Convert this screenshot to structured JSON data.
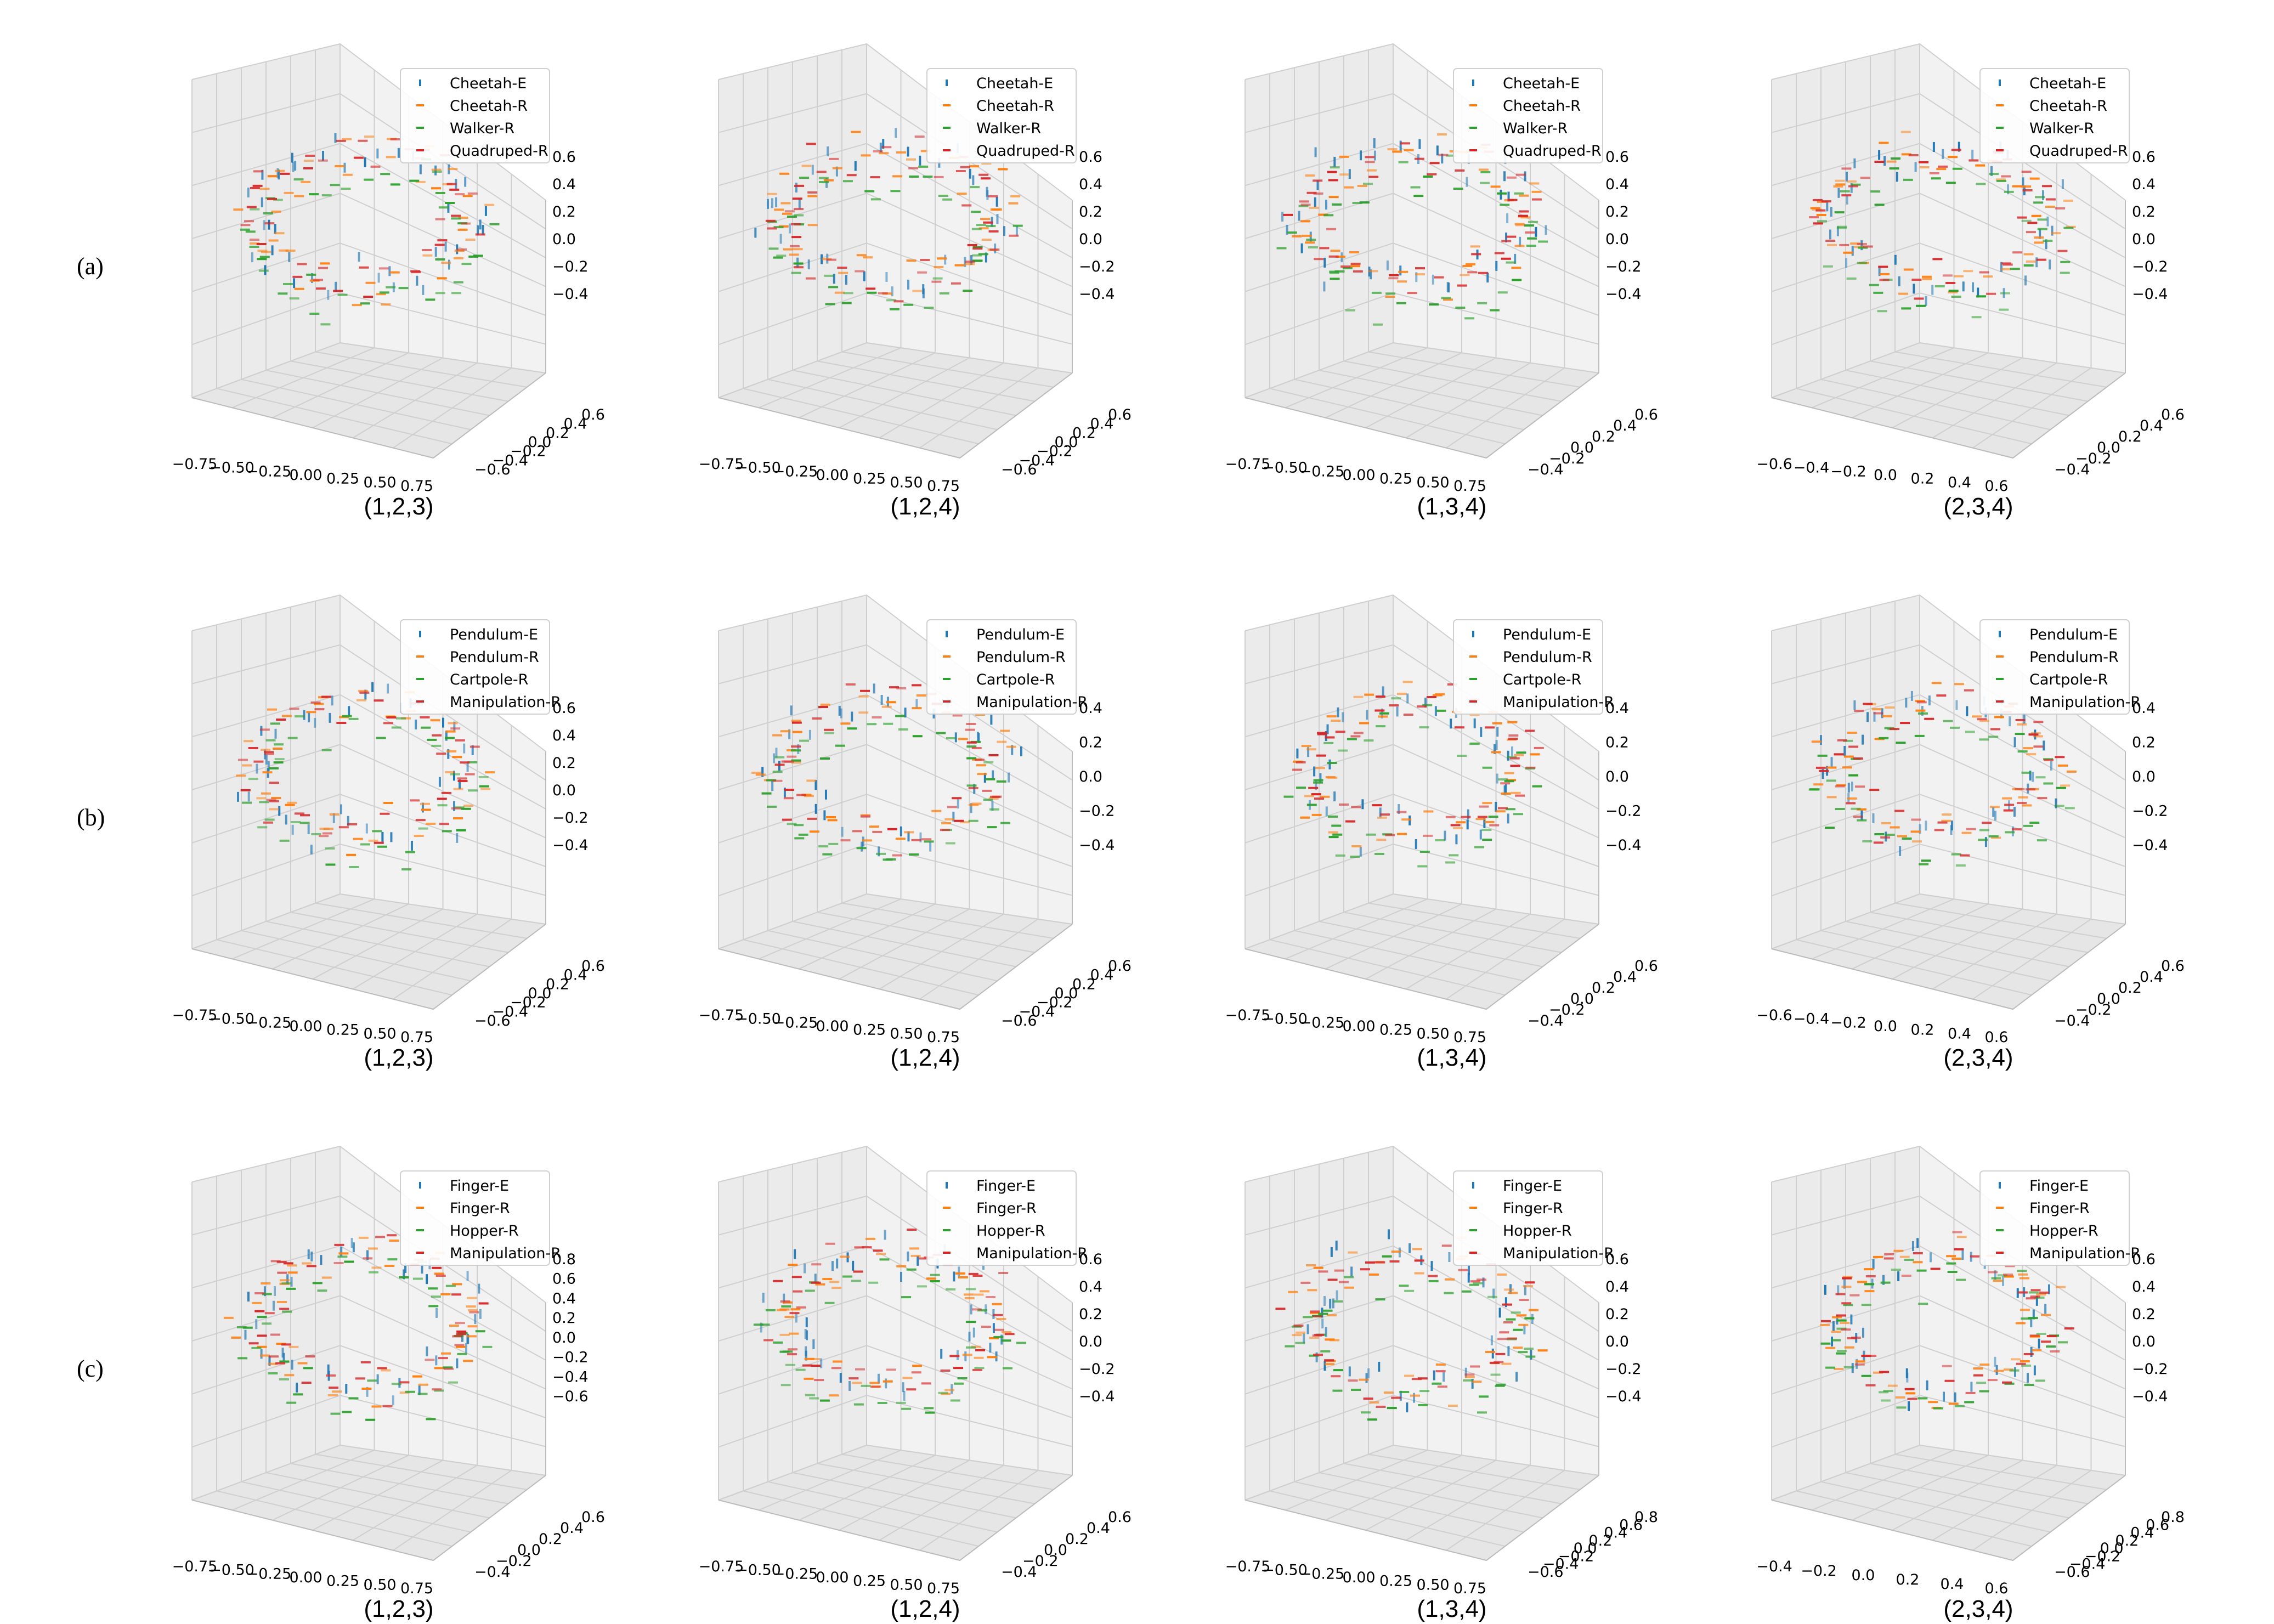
{
  "figure": {
    "row_labels": [
      "(a)",
      "(b)",
      "(c)"
    ]
  },
  "colors": {
    "blue": "#1f77b4",
    "orange": "#ff7f0e",
    "green": "#2ca02c",
    "red": "#d62728",
    "pane_wall": "#ebebeb",
    "pane_floor": "#f2f2f2",
    "grid": "#cfcfcf"
  },
  "chart_data": [
    {
      "type": "scatter",
      "row": 0,
      "col": 0,
      "caption": "(1,2,3)",
      "legend": [
        "Cheetah-E",
        "Cheetah-R",
        "Walker-R",
        "Quadruped-R"
      ],
      "x_ticks": [
        "−0.75",
        "−0.50",
        "−0.25",
        "0.00",
        "0.25",
        "0.50",
        "0.75"
      ],
      "y_ticks": [
        "−0.6",
        "−0.4",
        "−0.2",
        "0.0",
        "0.2",
        "0.4",
        "0.6"
      ],
      "z_ticks": [
        "−0.4",
        "−0.2",
        "0.0",
        "0.2",
        "0.4",
        "0.6"
      ]
    },
    {
      "type": "scatter",
      "row": 0,
      "col": 1,
      "caption": "(1,2,4)",
      "legend": [
        "Cheetah-E",
        "Cheetah-R",
        "Walker-R",
        "Quadruped-R"
      ],
      "x_ticks": [
        "−0.75",
        "−0.50",
        "−0.25",
        "0.00",
        "0.25",
        "0.50",
        "0.75"
      ],
      "y_ticks": [
        "−0.6",
        "−0.4",
        "−0.2",
        "0.0",
        "0.2",
        "0.4",
        "0.6"
      ],
      "z_ticks": [
        "−0.4",
        "−0.2",
        "0.0",
        "0.2",
        "0.4",
        "0.6"
      ]
    },
    {
      "type": "scatter",
      "row": 0,
      "col": 2,
      "caption": "(1,3,4)",
      "legend": [
        "Cheetah-E",
        "Cheetah-R",
        "Walker-R",
        "Quadruped-R"
      ],
      "x_ticks": [
        "−0.75",
        "−0.50",
        "−0.25",
        "0.00",
        "0.25",
        "0.50",
        "0.75"
      ],
      "y_ticks": [
        "−0.4",
        "−0.2",
        "0.0",
        "0.2",
        "0.4",
        "0.6"
      ],
      "z_ticks": [
        "−0.4",
        "−0.2",
        "0.0",
        "0.2",
        "0.4",
        "0.6"
      ]
    },
    {
      "type": "scatter",
      "row": 0,
      "col": 3,
      "caption": "(2,3,4)",
      "legend": [
        "Cheetah-E",
        "Cheetah-R",
        "Walker-R",
        "Quadruped-R"
      ],
      "x_ticks": [
        "−0.6",
        "−0.4",
        "−0.2",
        "0.0",
        "0.2",
        "0.4",
        "0.6"
      ],
      "y_ticks": [
        "−0.4",
        "−0.2",
        "0.0",
        "0.2",
        "0.4",
        "0.6"
      ],
      "z_ticks": [
        "−0.4",
        "−0.2",
        "0.0",
        "0.2",
        "0.4",
        "0.6"
      ]
    },
    {
      "type": "scatter",
      "row": 1,
      "col": 0,
      "caption": "(1,2,3)",
      "legend": [
        "Pendulum-E",
        "Pendulum-R",
        "Cartpole-R",
        "Manipulation-R"
      ],
      "x_ticks": [
        "−0.75",
        "−0.50",
        "−0.25",
        "0.00",
        "0.25",
        "0.50",
        "0.75"
      ],
      "y_ticks": [
        "−0.6",
        "−0.4",
        "−0.2",
        "0.0",
        "0.2",
        "0.4",
        "0.6"
      ],
      "z_ticks": [
        "−0.4",
        "−0.2",
        "0.0",
        "0.2",
        "0.4",
        "0.6"
      ]
    },
    {
      "type": "scatter",
      "row": 1,
      "col": 1,
      "caption": "(1,2,4)",
      "legend": [
        "Pendulum-E",
        "Pendulum-R",
        "Cartpole-R",
        "Manipulation-R"
      ],
      "x_ticks": [
        "−0.75",
        "−0.50",
        "−0.25",
        "0.00",
        "0.25",
        "0.50",
        "0.75"
      ],
      "y_ticks": [
        "−0.6",
        "−0.4",
        "−0.2",
        "0.0",
        "0.2",
        "0.4",
        "0.6"
      ],
      "z_ticks": [
        "−0.4",
        "−0.2",
        "0.0",
        "0.2",
        "0.4"
      ]
    },
    {
      "type": "scatter",
      "row": 1,
      "col": 2,
      "caption": "(1,3,4)",
      "legend": [
        "Pendulum-E",
        "Pendulum-R",
        "Cartpole-R",
        "Manipulation-R"
      ],
      "x_ticks": [
        "−0.75",
        "−0.50",
        "−0.25",
        "0.00",
        "0.25",
        "0.50",
        "0.75"
      ],
      "y_ticks": [
        "−0.4",
        "−0.2",
        "0.0",
        "0.2",
        "0.4",
        "0.6"
      ],
      "z_ticks": [
        "−0.4",
        "−0.2",
        "0.0",
        "0.2",
        "0.4"
      ]
    },
    {
      "type": "scatter",
      "row": 1,
      "col": 3,
      "caption": "(2,3,4)",
      "legend": [
        "Pendulum-E",
        "Pendulum-R",
        "Cartpole-R",
        "Manipulation-R"
      ],
      "x_ticks": [
        "−0.6",
        "−0.4",
        "−0.2",
        "0.0",
        "0.2",
        "0.4",
        "0.6"
      ],
      "y_ticks": [
        "−0.4",
        "−0.2",
        "0.0",
        "0.2",
        "0.4",
        "0.6"
      ],
      "z_ticks": [
        "−0.4",
        "−0.2",
        "0.0",
        "0.2",
        "0.4"
      ]
    },
    {
      "type": "scatter",
      "row": 2,
      "col": 0,
      "caption": "(1,2,3)",
      "legend": [
        "Finger-E",
        "Finger-R",
        "Hopper-R",
        "Manipulation-R"
      ],
      "x_ticks": [
        "−0.75",
        "−0.50",
        "−0.25",
        "0.00",
        "0.25",
        "0.50",
        "0.75"
      ],
      "y_ticks": [
        "−0.4",
        "−0.2",
        "0.0",
        "0.2",
        "0.4",
        "0.6"
      ],
      "z_ticks": [
        "−0.6",
        "−0.4",
        "−0.2",
        "0.0",
        "0.2",
        "0.4",
        "0.6",
        "0.8"
      ]
    },
    {
      "type": "scatter",
      "row": 2,
      "col": 1,
      "caption": "(1,2,4)",
      "legend": [
        "Finger-E",
        "Finger-R",
        "Hopper-R",
        "Manipulation-R"
      ],
      "x_ticks": [
        "−0.75",
        "−0.50",
        "−0.25",
        "0.00",
        "0.25",
        "0.50",
        "0.75"
      ],
      "y_ticks": [
        "−0.4",
        "−0.2",
        "0.0",
        "0.2",
        "0.4",
        "0.6"
      ],
      "z_ticks": [
        "−0.4",
        "−0.2",
        "0.0",
        "0.2",
        "0.4",
        "0.6"
      ]
    },
    {
      "type": "scatter",
      "row": 2,
      "col": 2,
      "caption": "(1,3,4)",
      "legend": [
        "Finger-E",
        "Finger-R",
        "Hopper-R",
        "Manipulation-R"
      ],
      "x_ticks": [
        "−0.75",
        "−0.50",
        "−0.25",
        "0.00",
        "0.25",
        "0.50",
        "0.75"
      ],
      "y_ticks": [
        "−0.6",
        "−0.4",
        "−0.2",
        "0.0",
        "0.2",
        "0.4",
        "0.6",
        "0.8"
      ],
      "z_ticks": [
        "−0.4",
        "−0.2",
        "0.0",
        "0.2",
        "0.4",
        "0.6"
      ]
    },
    {
      "type": "scatter",
      "row": 2,
      "col": 3,
      "caption": "(2,3,4)",
      "legend": [
        "Finger-E",
        "Finger-R",
        "Hopper-R",
        "Manipulation-R"
      ],
      "x_ticks": [
        "−0.4",
        "−0.2",
        "0.0",
        "0.2",
        "0.4",
        "0.6"
      ],
      "y_ticks": [
        "−0.6",
        "−0.4",
        "−0.2",
        "0.0",
        "0.2",
        "0.4",
        "0.6",
        "0.8"
      ],
      "z_ticks": [
        "−0.4",
        "−0.2",
        "0.0",
        "0.2",
        "0.4",
        "0.6"
      ]
    }
  ]
}
